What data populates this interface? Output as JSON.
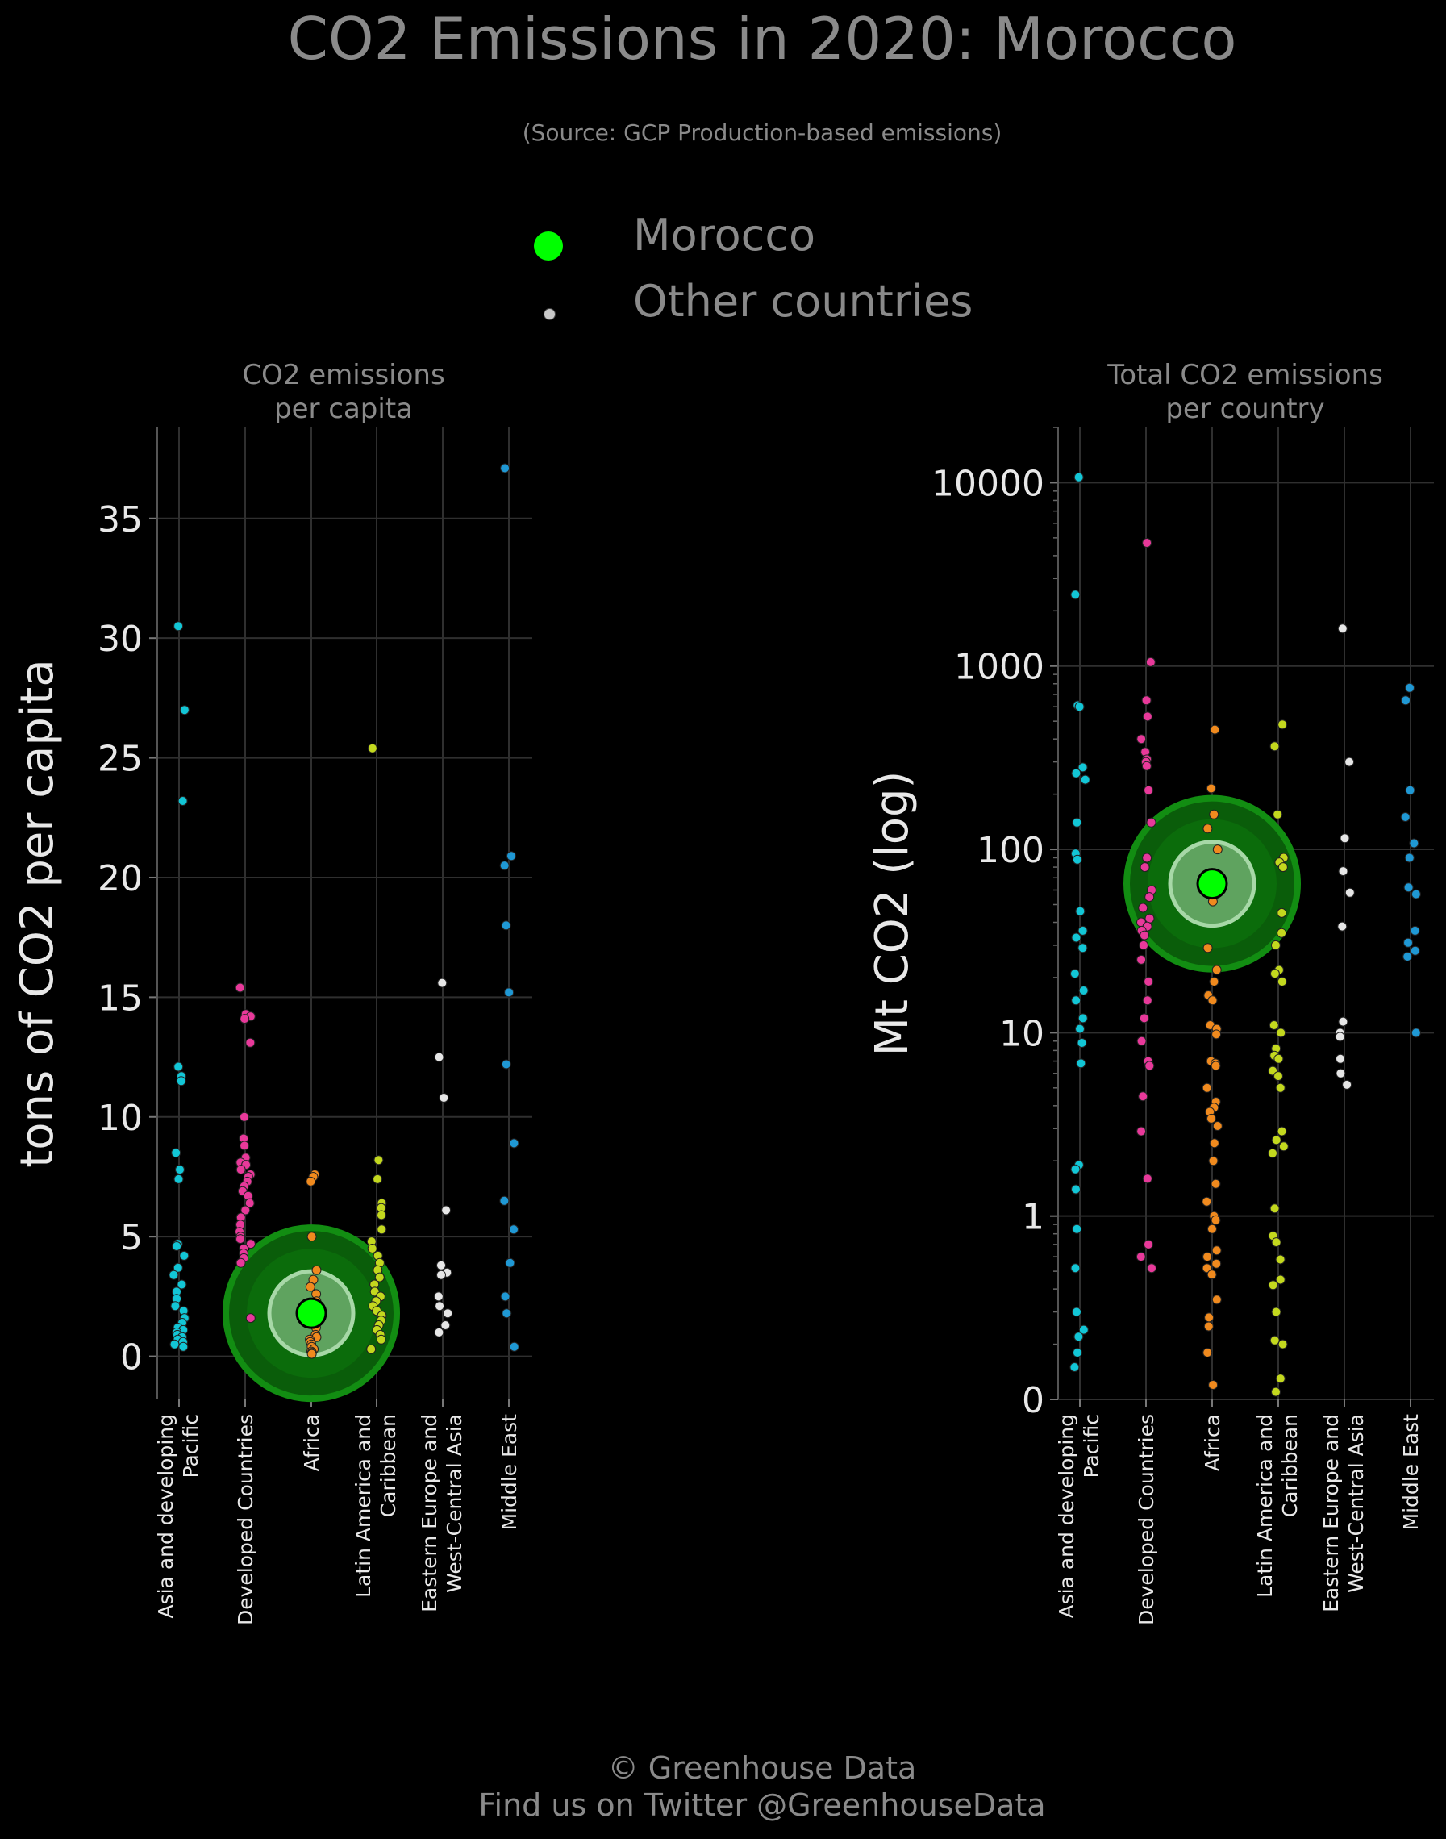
{
  "title": "CO2 Emissions in 2020: Morocco",
  "subtitle": "(Source: GCP Production-based emissions)",
  "legend": {
    "highlight": "Morocco",
    "others": "Other countries"
  },
  "footer": {
    "line1": "© Greenhouse Data",
    "line2": "Find us on Twitter @GreenhouseData"
  },
  "colors": {
    "Asia and developing Pacific": "#12c6d6",
    "Developed Countries": "#e8399a",
    "Africa": "#f08a1e",
    "Latin America and Caribbean": "#c3d81e",
    "Eastern Europe and West-Central Asia": "#e6e6e6",
    "Middle East": "#1f98d4",
    "highlight": "#00ff00"
  },
  "chart_data": [
    {
      "type": "scatter",
      "title": "CO2 emissions\nper capita",
      "ylabel": "tons of CO2 per capita",
      "ylim": [
        -1.8,
        38.8
      ],
      "yticks": [
        0,
        5,
        10,
        15,
        20,
        25,
        30,
        35
      ],
      "yscale": "linear",
      "categories": [
        "Asia and developing\nPacific",
        "Developed Countries",
        "Africa",
        "Latin America and\nCaribbean",
        "Eastern Europe and\nWest-Central Asia",
        "Middle East"
      ],
      "highlight": {
        "name": "Morocco",
        "category": "Africa",
        "value": 1.8
      },
      "series": [
        {
          "category": "Asia and developing\nPacific",
          "values": [
            30.5,
            27.0,
            23.2,
            12.1,
            11.7,
            11.5,
            8.5,
            7.8,
            7.4,
            4.7,
            4.6,
            4.2,
            3.7,
            3.4,
            3.0,
            2.7,
            2.4,
            2.1,
            1.9,
            1.6,
            1.4,
            1.2,
            1.1,
            1.0,
            0.9,
            0.8,
            0.7,
            0.6,
            0.5,
            0.4
          ]
        },
        {
          "category": "Developed Countries",
          "values": [
            15.4,
            14.3,
            14.2,
            14.1,
            13.1,
            10.0,
            9.1,
            8.8,
            8.3,
            8.1,
            8.0,
            7.8,
            7.6,
            7.5,
            7.3,
            7.1,
            6.9,
            6.7,
            6.4,
            6.1,
            5.8,
            5.5,
            5.2,
            5.0,
            4.9,
            4.7,
            4.5,
            4.3,
            4.1,
            3.9,
            1.6
          ]
        },
        {
          "category": "Africa",
          "values": [
            7.6,
            7.5,
            7.3,
            5.0,
            3.6,
            3.2,
            2.9,
            2.6,
            2.3,
            1.8,
            1.5,
            1.2,
            0.9,
            0.8,
            0.7,
            0.6,
            0.5,
            0.4,
            0.3,
            0.2,
            0.15,
            0.1
          ]
        },
        {
          "category": "Latin America and\nCaribbean",
          "values": [
            25.4,
            8.2,
            7.4,
            6.4,
            6.2,
            5.9,
            5.3,
            4.8,
            4.5,
            4.2,
            3.9,
            3.6,
            3.3,
            3.0,
            2.7,
            2.5,
            2.3,
            2.1,
            1.9,
            1.7,
            1.5,
            1.3,
            1.1,
            0.9,
            0.7,
            0.3
          ]
        },
        {
          "category": "Eastern Europe and\nWest-Central Asia",
          "values": [
            15.6,
            12.5,
            10.8,
            6.1,
            3.8,
            3.5,
            3.4,
            2.5,
            2.1,
            1.8,
            1.3,
            1.0
          ]
        },
        {
          "category": "Middle East",
          "values": [
            37.1,
            20.9,
            20.5,
            18.0,
            15.2,
            12.2,
            8.9,
            6.5,
            5.3,
            3.9,
            2.5,
            1.8,
            0.4
          ]
        }
      ]
    },
    {
      "type": "scatter",
      "title": "Total CO2 emissions\nper country",
      "ylabel": "Mt CO2 (log)",
      "yscale": "log",
      "ylim": [
        0.1,
        20000
      ],
      "yticks": [
        0.1,
        1,
        10,
        100,
        1000,
        10000
      ],
      "yticklabels": [
        "0",
        "1",
        "10",
        "100",
        "1000",
        "10000"
      ],
      "categories": [
        "Asia and developing\nPacific",
        "Developed Countries",
        "Africa",
        "Latin America and\nCaribbean",
        "Eastern Europe and\nWest-Central Asia",
        "Middle East"
      ],
      "highlight": {
        "name": "Morocco",
        "category": "Africa",
        "value": 65
      },
      "series": [
        {
          "category": "Asia and developing\nPacific",
          "values": [
            10700,
            2450,
            610,
            600,
            280,
            260,
            240,
            140,
            95,
            88,
            46,
            36,
            33,
            29,
            21,
            17,
            15,
            12,
            10.5,
            8.8,
            6.8,
            1.9,
            1.8,
            1.4,
            0.85,
            0.52,
            0.3,
            0.24,
            0.22,
            0.18,
            0.15
          ]
        },
        {
          "category": "Developed Countries",
          "values": [
            4700,
            1050,
            650,
            530,
            400,
            340,
            310,
            300,
            285,
            210,
            140,
            90,
            80,
            60,
            55,
            48,
            42,
            40,
            38,
            36,
            34,
            30,
            25,
            19,
            15,
            12,
            9,
            7,
            6.6,
            4.5,
            2.9,
            1.6,
            0.7,
            0.6,
            0.52
          ]
        },
        {
          "category": "Africa",
          "values": [
            450,
            215,
            155,
            130,
            100,
            65,
            52,
            29,
            22,
            19,
            16,
            15,
            11,
            10.5,
            9.8,
            7.0,
            6.8,
            6.6,
            5.0,
            4.2,
            3.9,
            3.7,
            3.4,
            3.1,
            2.5,
            2.0,
            1.5,
            1.2,
            1.0,
            0.95,
            0.85,
            0.65,
            0.6,
            0.55,
            0.52,
            0.48,
            0.35,
            0.28,
            0.25,
            0.18,
            0.12
          ]
        },
        {
          "category": "Latin America and\nCaribbean",
          "values": [
            480,
            365,
            155,
            90,
            85,
            80,
            45,
            35,
            30,
            22,
            21,
            19,
            11,
            10,
            8.2,
            7.5,
            7.2,
            6.2,
            5.8,
            5.0,
            2.9,
            2.6,
            2.4,
            2.2,
            1.1,
            0.78,
            0.72,
            0.58,
            0.45,
            0.42,
            0.3,
            0.21,
            0.2,
            0.13,
            0.11
          ]
        },
        {
          "category": "Eastern Europe and\nWest-Central Asia",
          "values": [
            1600,
            300,
            115,
            76,
            58,
            38,
            11.5,
            10,
            9.5,
            7.2,
            6.0,
            5.2
          ]
        },
        {
          "category": "Middle East",
          "values": [
            760,
            650,
            210,
            150,
            108,
            90,
            62,
            57,
            36,
            31,
            28,
            26,
            10
          ]
        }
      ]
    }
  ]
}
